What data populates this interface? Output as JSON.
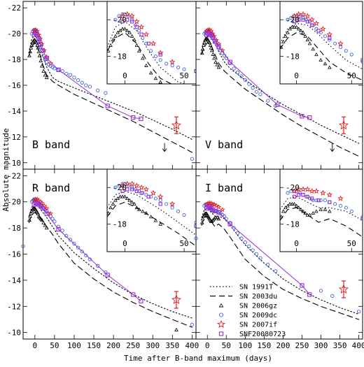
{
  "ylabel": "Absolute magnitude",
  "xlabel": "Time after B-band maximum (days)",
  "x_ticks": [
    0,
    50,
    100,
    150,
    200,
    250,
    300,
    350,
    400
  ],
  "y_ticks": [
    -22,
    -20,
    -18,
    -16,
    -14,
    -12,
    -10
  ],
  "inset_x_ticks": [
    0,
    50
  ],
  "inset_y_ticks": [
    -20,
    -18
  ],
  "legend": [
    {
      "label": "SN 1991T",
      "style": "dotted"
    },
    {
      "label": "SN 2003du",
      "style": "dashed"
    },
    {
      "label": "SN 2006gz",
      "marker": "triangle"
    },
    {
      "label": "SN 2009dc",
      "marker": "circle"
    },
    {
      "label": "SN 2007if",
      "marker": "star"
    },
    {
      "label": "SNF20080723",
      "marker": "square"
    }
  ],
  "colors": {
    "sn2009dc": "#3d63e0",
    "sn2007if": "#e02020",
    "snf20080723": "#9b30d0",
    "model_line": "#9b30d0",
    "sn2006gz": "#000000"
  },
  "chart_data": [
    {
      "type": "scatter",
      "panel": "B band",
      "band_label": "B band",
      "xlim": [
        -30,
        410
      ],
      "ylim": [
        -9.5,
        -22.5
      ],
      "series": [
        {
          "name": "SN 1991T",
          "style": "dotted",
          "x": [
            -15,
            -8,
            0,
            10,
            20,
            30,
            45,
            60,
            100,
            150,
            200,
            250,
            300,
            350,
            400
          ],
          "y": [
            -18.5,
            -19.6,
            -19.9,
            -19.4,
            -18.3,
            -17.4,
            -16.6,
            -16.3,
            -15.8,
            -15.2,
            -14.6,
            -14.0,
            -13.3,
            -12.6,
            -11.8
          ]
        },
        {
          "name": "SN 2003du",
          "style": "dashed",
          "x": [
            -15,
            -8,
            0,
            10,
            20,
            30,
            45,
            60,
            100,
            150,
            200,
            250,
            300,
            350,
            400
          ],
          "y": [
            -18.3,
            -19.0,
            -19.3,
            -18.7,
            -17.6,
            -16.8,
            -16.3,
            -16.0,
            -15.3,
            -14.6,
            -13.9,
            -13.2,
            -12.4,
            -11.6,
            -10.8
          ]
        },
        {
          "name": "SN 2006gz",
          "marker": "triangle",
          "x": [
            -14,
            -12,
            -10,
            -8,
            -6,
            -4,
            -2,
            0,
            2,
            4,
            6,
            8,
            10,
            12,
            15,
            18,
            22,
            26,
            30
          ],
          "y": [
            -18.3,
            -18.6,
            -18.9,
            -19.1,
            -19.3,
            -19.4,
            -19.5,
            -19.5,
            -19.4,
            -19.3,
            -19.1,
            -18.9,
            -18.6,
            -18.3,
            -17.9,
            -17.5,
            -17.1,
            -16.8,
            -16.6
          ]
        },
        {
          "name": "SN 2009dc",
          "marker": "circle",
          "x": [
            -8,
            -5,
            -2,
            0,
            3,
            6,
            9,
            12,
            15,
            18,
            22,
            26,
            30,
            35,
            40,
            45,
            50,
            60,
            70,
            80,
            90,
            100,
            110,
            120,
            130,
            140,
            160,
            180,
            400
          ],
          "y": [
            -20.0,
            -20.2,
            -20.3,
            -20.3,
            -20.2,
            -20.0,
            -19.7,
            -19.4,
            -19.0,
            -18.7,
            -18.3,
            -18.0,
            -17.8,
            -17.6,
            -17.5,
            -17.4,
            -17.3,
            -17.2,
            -17.1,
            -16.9,
            -16.8,
            -16.6,
            -16.4,
            -16.2,
            -16.0,
            -15.9,
            -15.6,
            -15.4,
            -10.3
          ]
        },
        {
          "name": "SN 2007if",
          "marker": "star",
          "x": [
            -2,
            2,
            6,
            10,
            14,
            18,
            24,
            30,
            40,
            360
          ],
          "y": [
            -20.2,
            -20.3,
            -20.2,
            -19.9,
            -19.6,
            -19.2,
            -18.7,
            -18.2,
            -17.7,
            -12.9
          ]
        },
        {
          "name": "SNF20080723",
          "marker": "square",
          "x": [
            -2,
            2,
            6,
            10,
            14,
            20,
            30,
            60,
            185,
            250,
            270
          ],
          "y": [
            -19.9,
            -20.0,
            -19.9,
            -19.6,
            -19.2,
            -18.7,
            -18.1,
            -17.2,
            -14.4,
            -13.5,
            -13.4
          ]
        }
      ]
    },
    {
      "type": "scatter",
      "panel": "V band",
      "band_label": "V band",
      "xlim": [
        -30,
        410
      ],
      "ylim": [
        -9.5,
        -22.5
      ],
      "series": [
        {
          "name": "SN 1991T",
          "style": "dotted",
          "x": [
            -15,
            -8,
            0,
            10,
            20,
            30,
            45,
            60,
            100,
            150,
            200,
            250,
            300,
            350,
            400
          ],
          "y": [
            -18.7,
            -19.5,
            -19.8,
            -19.7,
            -19.2,
            -18.6,
            -17.8,
            -17.3,
            -16.4,
            -15.4,
            -14.5,
            -13.7,
            -12.9,
            -12.2,
            -11.5
          ]
        },
        {
          "name": "SN 2003du",
          "style": "dashed",
          "x": [
            -15,
            -8,
            0,
            10,
            20,
            30,
            45,
            60,
            100,
            150,
            200,
            250,
            300,
            350,
            400
          ],
          "y": [
            -18.4,
            -19.0,
            -19.3,
            -19.1,
            -18.4,
            -17.7,
            -17.1,
            -16.7,
            -15.7,
            -14.7,
            -13.7,
            -12.8,
            -12.0,
            -11.2,
            -10.5
          ]
        },
        {
          "name": "SN 2006gz",
          "marker": "triangle",
          "x": [
            -14,
            -12,
            -10,
            -8,
            -6,
            -4,
            -2,
            0,
            2,
            4,
            6,
            8,
            10,
            12,
            15,
            18,
            22,
            26,
            30
          ],
          "y": [
            -18.5,
            -18.8,
            -19.1,
            -19.3,
            -19.5,
            -19.6,
            -19.6,
            -19.6,
            -19.5,
            -19.4,
            -19.3,
            -19.1,
            -18.9,
            -18.7,
            -18.4,
            -18.1,
            -17.8,
            -17.6,
            -17.4
          ]
        },
        {
          "name": "SN 2009dc",
          "marker": "circle",
          "x": [
            -8,
            -5,
            -2,
            0,
            3,
            6,
            9,
            12,
            15,
            18,
            22,
            26,
            30,
            35,
            40,
            45,
            50,
            60,
            70,
            80,
            90,
            100,
            110,
            120,
            130,
            140,
            160,
            180
          ],
          "y": [
            -20.0,
            -20.1,
            -20.2,
            -20.2,
            -20.2,
            -20.1,
            -20.0,
            -19.9,
            -19.7,
            -19.5,
            -19.3,
            -19.1,
            -18.9,
            -18.7,
            -18.5,
            -18.3,
            -18.1,
            -17.7,
            -17.3,
            -17.0,
            -16.7,
            -16.4,
            -16.1,
            -15.8,
            -15.5,
            -15.3,
            -14.8,
            -14.4
          ]
        },
        {
          "name": "SN 2007if",
          "marker": "star",
          "x": [
            -2,
            2,
            6,
            10,
            14,
            18,
            24,
            30,
            40,
            360
          ],
          "y": [
            -20.2,
            -20.3,
            -20.3,
            -20.2,
            -20.0,
            -19.8,
            -19.5,
            -19.2,
            -18.7,
            -12.9
          ]
        },
        {
          "name": "SNF20080723",
          "marker": "square",
          "x": [
            -2,
            2,
            6,
            10,
            14,
            20,
            30,
            60,
            185,
            250,
            270
          ],
          "y": [
            -19.9,
            -20.0,
            -20.0,
            -19.9,
            -19.7,
            -19.4,
            -19.0,
            -17.8,
            -14.5,
            -13.6,
            -13.5
          ]
        }
      ]
    },
    {
      "type": "scatter",
      "panel": "R band",
      "band_label": "R band",
      "xlim": [
        -30,
        410
      ],
      "ylim": [
        -9.5,
        -22.5
      ],
      "series": [
        {
          "name": "SN 1991T",
          "style": "dotted",
          "x": [
            -15,
            -8,
            0,
            10,
            20,
            30,
            45,
            60,
            100,
            150,
            200,
            250,
            300,
            350,
            400
          ],
          "y": [
            -18.9,
            -19.6,
            -19.8,
            -19.6,
            -19.2,
            -18.8,
            -18.1,
            -17.4,
            -16.1,
            -14.9,
            -13.8,
            -12.9,
            -12.2,
            -11.6,
            -11.1
          ]
        },
        {
          "name": "SN 2003du",
          "style": "dashed",
          "x": [
            -15,
            -8,
            0,
            10,
            20,
            30,
            45,
            60,
            100,
            150,
            200,
            250,
            300,
            350,
            400
          ],
          "y": [
            -18.4,
            -19.0,
            -19.2,
            -18.9,
            -18.5,
            -18.1,
            -17.5,
            -16.8,
            -15.3,
            -14.1,
            -13.1,
            -12.3,
            -11.6,
            -11.0,
            -10.4
          ]
        },
        {
          "name": "SN 2006gz",
          "marker": "triangle",
          "x": [
            -14,
            -12,
            -10,
            -8,
            -6,
            -4,
            -2,
            0,
            2,
            4,
            6,
            8,
            10,
            12,
            15,
            18,
            22,
            26,
            30,
            360
          ],
          "y": [
            -18.6,
            -18.9,
            -19.1,
            -19.3,
            -19.4,
            -19.5,
            -19.5,
            -19.5,
            -19.4,
            -19.3,
            -19.2,
            -19.1,
            -18.9,
            -18.8,
            -18.7,
            -18.6,
            -18.4,
            -18.2,
            -18.0,
            -10.2
          ]
        },
        {
          "name": "SN 2009dc",
          "marker": "circle",
          "x": [
            -30,
            -8,
            -5,
            -2,
            0,
            3,
            6,
            9,
            12,
            15,
            18,
            22,
            26,
            30,
            35,
            40,
            45,
            50,
            60,
            70,
            80,
            90,
            100,
            110,
            120,
            130,
            140,
            160,
            180,
            400
          ],
          "y": [
            -16.6,
            -20.0,
            -20.1,
            -20.2,
            -20.2,
            -20.1,
            -20.0,
            -19.9,
            -19.8,
            -19.7,
            -19.6,
            -19.5,
            -19.4,
            -19.3,
            -19.1,
            -18.9,
            -18.7,
            -18.5,
            -18.1,
            -17.8,
            -17.4,
            -17.1,
            -16.8,
            -16.5,
            -16.2,
            -15.9,
            -15.6,
            -15.1,
            -14.6,
            -10.6
          ]
        },
        {
          "name": "SN 2007if",
          "marker": "star",
          "x": [
            -2,
            2,
            6,
            10,
            14,
            18,
            24,
            30,
            40,
            360
          ],
          "y": [
            -20.1,
            -20.2,
            -20.2,
            -20.1,
            -20.0,
            -19.9,
            -19.7,
            -19.5,
            -19.1,
            -12.5
          ]
        },
        {
          "name": "SNF20080723",
          "marker": "square",
          "x": [
            -2,
            2,
            6,
            10,
            14,
            20,
            30,
            60,
            185,
            250,
            270
          ],
          "y": [
            -19.8,
            -19.9,
            -19.9,
            -19.8,
            -19.7,
            -19.5,
            -19.1,
            -17.9,
            -14.4,
            -12.9,
            -12.4
          ]
        }
      ]
    },
    {
      "type": "scatter",
      "panel": "I band",
      "band_label": "I band",
      "xlim": [
        -30,
        410
      ],
      "ylim": [
        -9.5,
        -22.5
      ],
      "series": [
        {
          "name": "SN 1991T",
          "style": "dotted",
          "x": [
            -15,
            -8,
            0,
            10,
            20,
            30,
            45,
            60,
            100,
            150,
            200,
            250,
            300,
            350,
            400
          ],
          "y": [
            -18.8,
            -19.4,
            -19.5,
            -19.2,
            -18.9,
            -18.9,
            -18.7,
            -18.2,
            -16.7,
            -15.3,
            -14.1,
            -13.2,
            -12.5,
            -11.9,
            -11.4
          ]
        },
        {
          "name": "SN 2003du",
          "style": "dashed",
          "x": [
            -15,
            -8,
            0,
            10,
            20,
            30,
            45,
            60,
            100,
            150,
            200,
            250,
            300,
            350,
            400
          ],
          "y": [
            -18.2,
            -18.8,
            -18.9,
            -18.5,
            -18.1,
            -18.3,
            -17.9,
            -17.3,
            -15.6,
            -14.3,
            -13.3,
            -12.6,
            -12.0,
            -11.5,
            -11.0
          ]
        },
        {
          "name": "SN 2006gz",
          "marker": "triangle",
          "x": [
            -14,
            -12,
            -10,
            -8,
            -6,
            -4,
            -2,
            0,
            2,
            4,
            6,
            8,
            10,
            12,
            15,
            18,
            22,
            26,
            30
          ],
          "y": [
            -18.4,
            -18.7,
            -18.9,
            -19.0,
            -19.1,
            -19.1,
            -19.1,
            -19.0,
            -18.9,
            -18.8,
            -18.7,
            -18.6,
            -18.5,
            -18.5,
            -18.6,
            -18.7,
            -18.8,
            -18.8,
            -18.7
          ]
        },
        {
          "name": "SN 2009dc",
          "marker": "circle",
          "x": [
            -30,
            -8,
            -5,
            -2,
            0,
            3,
            6,
            9,
            12,
            15,
            18,
            22,
            26,
            30,
            35,
            40,
            45,
            50,
            60,
            70,
            80,
            90,
            100,
            110,
            120,
            130,
            140,
            160,
            180,
            300,
            330,
            400
          ],
          "y": [
            -17.2,
            -19.7,
            -19.8,
            -19.8,
            -19.8,
            -19.7,
            -19.6,
            -19.5,
            -19.4,
            -19.3,
            -19.3,
            -19.3,
            -19.3,
            -19.2,
            -19.1,
            -19.0,
            -18.9,
            -18.7,
            -18.4,
            -18.0,
            -17.6,
            -17.2,
            -16.9,
            -16.6,
            -16.3,
            -16.0,
            -15.7,
            -15.2,
            -14.7,
            -13.2,
            -12.8,
            -11.6
          ]
        },
        {
          "name": "SN 2007if",
          "marker": "star",
          "x": [
            -2,
            2,
            6,
            10,
            14,
            18,
            24,
            30,
            40,
            360
          ],
          "y": [
            -19.8,
            -19.9,
            -19.9,
            -19.9,
            -19.8,
            -19.8,
            -19.7,
            -19.6,
            -19.4,
            -13.3
          ]
        },
        {
          "name": "SNF20080723",
          "marker": "square",
          "x": [
            -2,
            2,
            6,
            10,
            14,
            20,
            30,
            60,
            250,
            270
          ],
          "y": [
            -19.5,
            -19.6,
            -19.6,
            -19.5,
            -19.4,
            -19.3,
            -19.2,
            -18.3,
            -13.6,
            -12.9
          ]
        }
      ]
    }
  ]
}
